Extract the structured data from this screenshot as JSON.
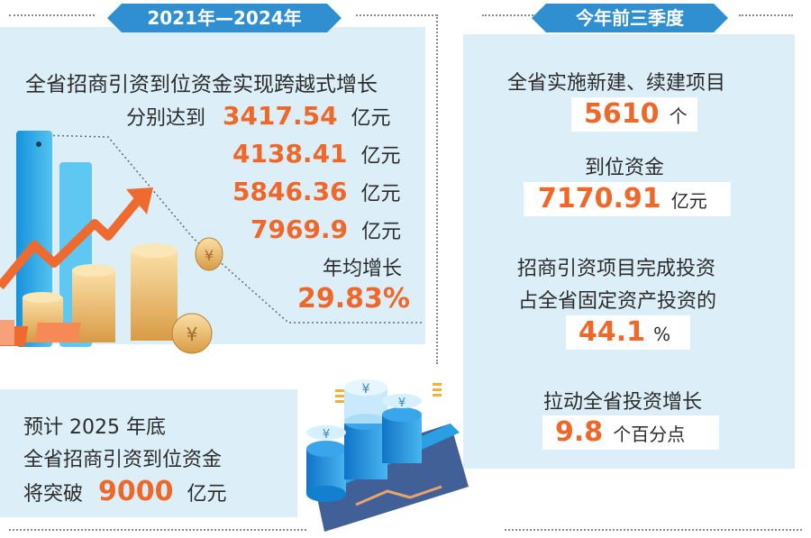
{
  "left": {
    "tag": "2021年—2024年",
    "heading": "全省招商引资到位资金实现跨越式增长",
    "lead": "分别达到",
    "values": [
      {
        "value": "3417.54",
        "unit": "亿元"
      },
      {
        "value": "4138.41",
        "unit": "亿元"
      },
      {
        "value": "5846.36",
        "unit": "亿元"
      },
      {
        "value": "7969.9",
        "unit": "亿元"
      }
    ],
    "avg_label": "年均增长",
    "avg_value": "29.83%"
  },
  "right": {
    "tag": "今年前三季度",
    "l1": "全省实施新建、续建项目",
    "v1": "5610",
    "u1": "个",
    "l2": "到位资金",
    "v2": "7170.91",
    "u2": "亿元",
    "l3a": "招商引资项目完成投资",
    "l3b": "占全省固定资产投资的",
    "v3": "44.1",
    "u3": "%",
    "l4": "拉动全省投资增长",
    "v4": "9.8",
    "u4": "个百分点"
  },
  "bottom": {
    "l1": "预计 2025 年底",
    "l2": "全省招商引资到位资金",
    "l3": "将突破",
    "v": "9000",
    "u": "亿元"
  },
  "colors": {
    "accent": "#f0672a",
    "tag": "#2f8fd0",
    "panel": "#dceff8"
  }
}
